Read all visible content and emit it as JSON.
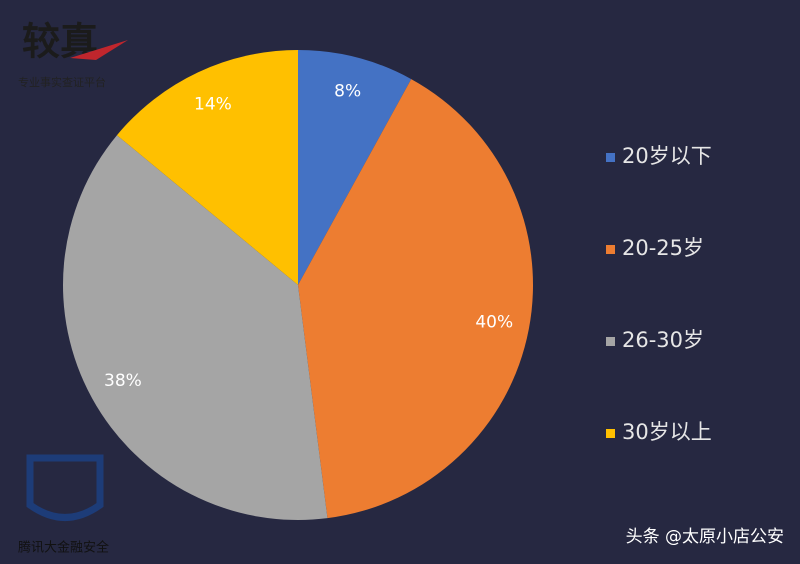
{
  "chart_data": {
    "type": "pie",
    "categories": [
      "20岁以下",
      "20-25岁",
      "26-30岁",
      "30岁以上"
    ],
    "values": [
      8,
      40,
      38,
      14
    ],
    "value_labels": [
      "8%",
      "40%",
      "38%",
      "14%"
    ],
    "colors": [
      "#4472c4",
      "#ed7d31",
      "#a5a5a5",
      "#ffc000"
    ]
  },
  "watermarks": {
    "logo_title": "较真",
    "logo_subtitle": "专业事实查证平台",
    "brand": "腾讯大金融安全",
    "source": "头条 @太原小店公安"
  }
}
